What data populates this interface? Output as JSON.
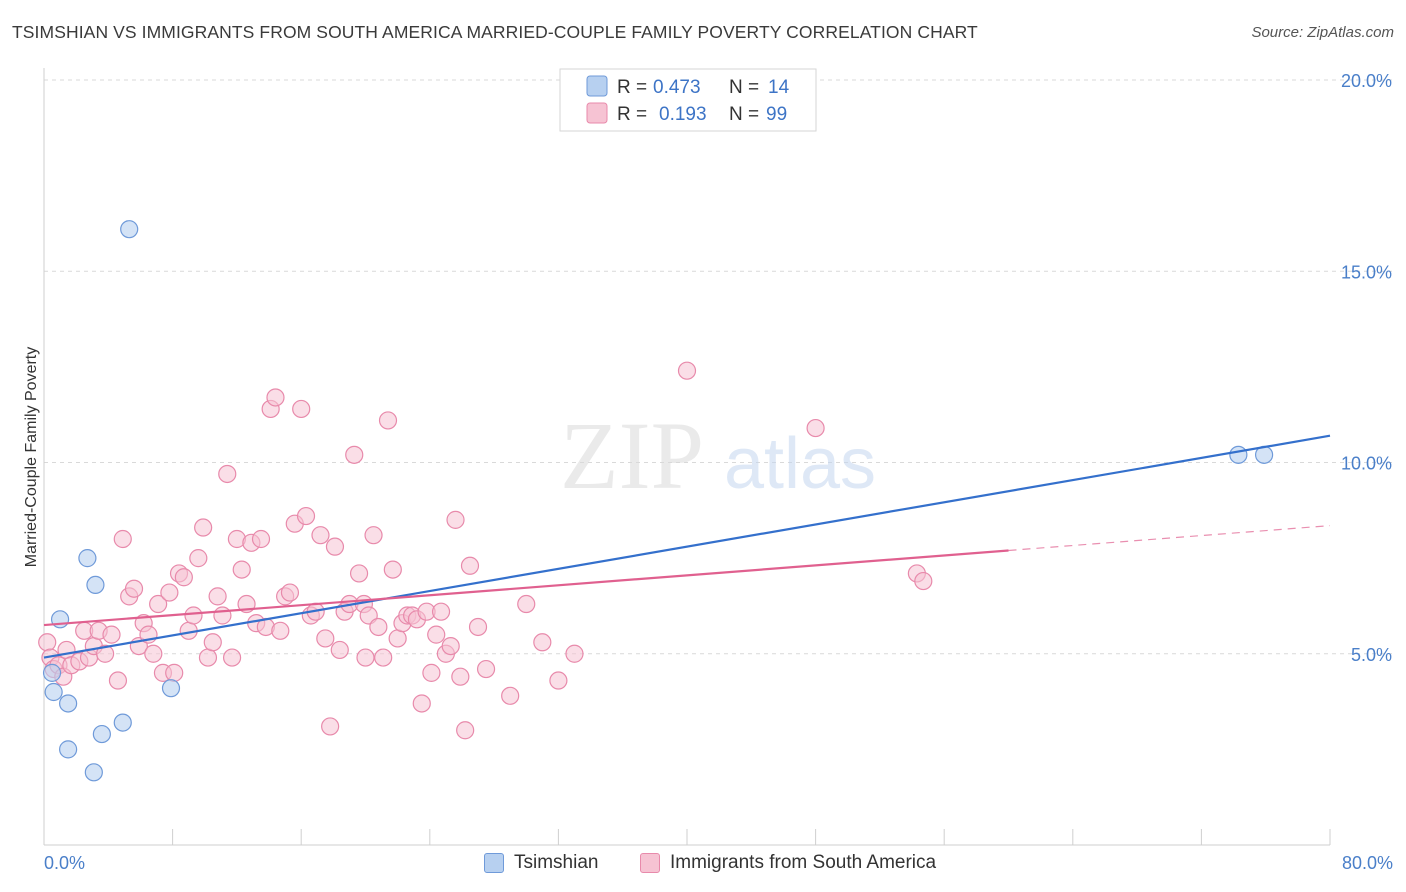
{
  "title": "TSIMSHIAN VS IMMIGRANTS FROM SOUTH AMERICA MARRIED-COUPLE FAMILY POVERTY CORRELATION CHART",
  "source": "Source: ZipAtlas.com",
  "watermark": {
    "zip": "ZIP",
    "atlas": "atlas"
  },
  "colors": {
    "blue_fill": "#b7d0f0",
    "blue_stroke": "#6f9ad9",
    "blue_line": "#3470cc",
    "pink_fill": "#f6c3d3",
    "pink_stroke": "#e88aab",
    "pink_line": "#e0608f",
    "axis_text": "#4a7fc9",
    "grid": "#d9d9d9"
  },
  "legend": {
    "rows": [
      {
        "r_label": "R =",
        "r_value": "0.473",
        "n_label": "N =",
        "n_value": "14"
      },
      {
        "r_label": "R =",
        "r_value": "0.193",
        "n_label": "N =",
        "n_value": "99"
      }
    ]
  },
  "bottom_legend": {
    "series1": "Tsimshian",
    "series2": "Immigrants from South America"
  },
  "chart_data": {
    "type": "scatter",
    "title": "TSIMSHIAN VS IMMIGRANTS FROM SOUTH AMERICA MARRIED-COUPLE FAMILY POVERTY CORRELATION CHART",
    "ylabel": "Married-Couple Family Poverty",
    "xlabel": "",
    "xlim": [
      0,
      80
    ],
    "ylim": [
      0,
      20
    ],
    "x_tick_labels": [
      "0.0%",
      "80.0%"
    ],
    "y_ticks": [
      5,
      10,
      15,
      20
    ],
    "y_tick_labels": [
      "5.0%",
      "10.0%",
      "15.0%",
      "20.0%"
    ],
    "grid": true,
    "series": [
      {
        "name": "Tsimshian",
        "color": "#6f9ad9",
        "trend": {
          "x": [
            0,
            80
          ],
          "y": [
            4.9,
            10.7
          ],
          "dashed_from": null
        },
        "points": [
          [
            0.5,
            4.5
          ],
          [
            0.6,
            4.0
          ],
          [
            1.0,
            5.9
          ],
          [
            1.5,
            3.7
          ],
          [
            1.5,
            2.5
          ],
          [
            2.7,
            7.5
          ],
          [
            3.2,
            6.8
          ],
          [
            3.1,
            1.9
          ],
          [
            3.6,
            2.9
          ],
          [
            4.9,
            3.2
          ],
          [
            5.3,
            16.1
          ],
          [
            7.9,
            4.1
          ],
          [
            74.3,
            10.2
          ],
          [
            75.9,
            10.2
          ]
        ]
      },
      {
        "name": "Immigrants from South America",
        "color": "#e88aab",
        "trend": {
          "x": [
            0,
            80
          ],
          "y": [
            5.75,
            8.35
          ],
          "solid_until": 60
        },
        "points": [
          [
            0.2,
            5.3
          ],
          [
            0.4,
            4.9
          ],
          [
            0.6,
            4.6
          ],
          [
            0.9,
            4.7
          ],
          [
            1.2,
            4.4
          ],
          [
            1.4,
            5.1
          ],
          [
            1.7,
            4.7
          ],
          [
            2.2,
            4.8
          ],
          [
            2.5,
            5.6
          ],
          [
            2.8,
            4.9
          ],
          [
            3.1,
            5.2
          ],
          [
            3.4,
            5.6
          ],
          [
            3.8,
            5.0
          ],
          [
            4.2,
            5.5
          ],
          [
            4.6,
            4.3
          ],
          [
            4.9,
            8.0
          ],
          [
            5.3,
            6.5
          ],
          [
            5.6,
            6.7
          ],
          [
            5.9,
            5.2
          ],
          [
            6.2,
            5.8
          ],
          [
            6.5,
            5.5
          ],
          [
            6.8,
            5.0
          ],
          [
            7.1,
            6.3
          ],
          [
            7.4,
            4.5
          ],
          [
            7.8,
            6.6
          ],
          [
            8.1,
            4.5
          ],
          [
            8.4,
            7.1
          ],
          [
            8.7,
            7.0
          ],
          [
            9.0,
            5.6
          ],
          [
            9.3,
            6.0
          ],
          [
            9.6,
            7.5
          ],
          [
            9.9,
            8.3
          ],
          [
            10.2,
            4.9
          ],
          [
            10.5,
            5.3
          ],
          [
            10.8,
            6.5
          ],
          [
            11.1,
            6.0
          ],
          [
            11.4,
            9.7
          ],
          [
            11.7,
            4.9
          ],
          [
            12.0,
            8.0
          ],
          [
            12.3,
            7.2
          ],
          [
            12.6,
            6.3
          ],
          [
            12.9,
            7.9
          ],
          [
            13.2,
            5.8
          ],
          [
            13.5,
            8.0
          ],
          [
            13.8,
            5.7
          ],
          [
            14.1,
            11.4
          ],
          [
            14.4,
            11.7
          ],
          [
            14.7,
            5.6
          ],
          [
            15.0,
            6.5
          ],
          [
            15.3,
            6.6
          ],
          [
            15.6,
            8.4
          ],
          [
            16.0,
            11.4
          ],
          [
            16.3,
            8.6
          ],
          [
            16.6,
            6.0
          ],
          [
            16.9,
            6.1
          ],
          [
            17.2,
            8.1
          ],
          [
            17.5,
            5.4
          ],
          [
            17.8,
            3.1
          ],
          [
            18.1,
            7.8
          ],
          [
            18.4,
            5.1
          ],
          [
            18.7,
            6.1
          ],
          [
            19.0,
            6.3
          ],
          [
            19.3,
            10.2
          ],
          [
            19.6,
            7.1
          ],
          [
            19.9,
            6.3
          ],
          [
            20.2,
            6.0
          ],
          [
            20.5,
            8.1
          ],
          [
            20.8,
            5.7
          ],
          [
            21.1,
            4.9
          ],
          [
            21.4,
            11.1
          ],
          [
            21.7,
            7.2
          ],
          [
            22.0,
            5.4
          ],
          [
            22.3,
            5.8
          ],
          [
            22.6,
            6.0
          ],
          [
            22.9,
            6.0
          ],
          [
            23.2,
            5.9
          ],
          [
            23.5,
            3.7
          ],
          [
            23.8,
            6.1
          ],
          [
            24.1,
            4.5
          ],
          [
            24.4,
            5.5
          ],
          [
            24.7,
            6.1
          ],
          [
            25.0,
            5.0
          ],
          [
            25.3,
            5.2
          ],
          [
            25.6,
            8.5
          ],
          [
            25.9,
            4.4
          ],
          [
            26.2,
            3.0
          ],
          [
            26.5,
            7.3
          ],
          [
            27.0,
            5.7
          ],
          [
            27.5,
            4.6
          ],
          [
            29.0,
            3.9
          ],
          [
            30.0,
            6.3
          ],
          [
            31.0,
            5.3
          ],
          [
            32.0,
            4.3
          ],
          [
            33.0,
            5.0
          ],
          [
            40.0,
            12.4
          ],
          [
            48.0,
            10.9
          ],
          [
            54.3,
            7.1
          ],
          [
            54.7,
            6.9
          ],
          [
            20.0,
            4.9
          ]
        ]
      }
    ],
    "legend_position": "top-center"
  }
}
